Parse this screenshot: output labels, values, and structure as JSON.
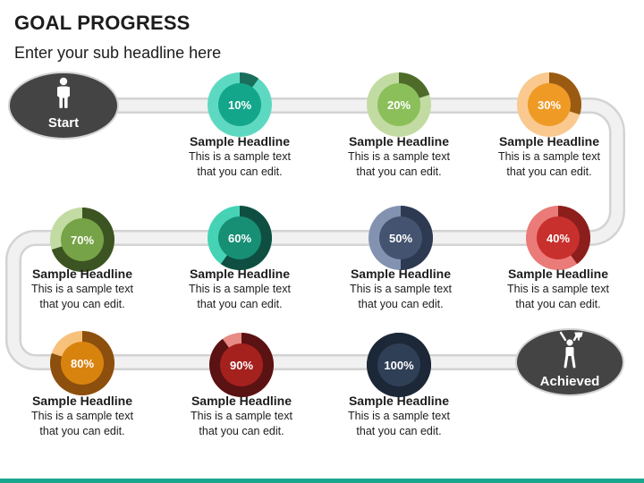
{
  "title": "GOAL PROGRESS",
  "subtitle": "Enter your sub headline here",
  "start_label": "Start",
  "end_label": "Achieved",
  "steps": [
    {
      "percent": "10%",
      "value": 10,
      "headline": "Sample Headline",
      "text_line1": "This is a sample text",
      "text_line2": "that you can edit.",
      "colors": {
        "outer": "#5ed9c1",
        "accent": "#1a6e5c",
        "inner": "#14a68a"
      }
    },
    {
      "percent": "20%",
      "value": 20,
      "headline": "Sample Headline",
      "text_line1": "This is a sample text",
      "text_line2": "that you can edit.",
      "colors": {
        "outer": "#c2dba3",
        "accent": "#4e6b2a",
        "inner": "#8bbf5a"
      }
    },
    {
      "percent": "30%",
      "value": 30,
      "headline": "Sample Headline",
      "text_line1": "This is a sample text",
      "text_line2": "that you can edit.",
      "colors": {
        "outer": "#f9c98f",
        "accent": "#9a5a12",
        "inner": "#ef9a25"
      }
    },
    {
      "percent": "40%",
      "value": 40,
      "headline": "Sample Headline",
      "text_line1": "This is a sample text",
      "text_line2": "that you can edit.",
      "colors": {
        "outer": "#ea7b78",
        "accent": "#8c1e1c",
        "inner": "#c8302d"
      }
    },
    {
      "percent": "50%",
      "value": 50,
      "headline": "Sample Headline",
      "text_line1": "This is a sample text",
      "text_line2": "that you can edit.",
      "colors": {
        "outer": "#8292b0",
        "accent": "#2d3a52",
        "inner": "#44536f"
      }
    },
    {
      "percent": "60%",
      "value": 60,
      "headline": "Sample Headline",
      "text_line1": "This is a sample text",
      "text_line2": "that you can edit.",
      "colors": {
        "outer": "#46d3b5",
        "accent": "#0f4f41",
        "inner": "#178f75"
      }
    },
    {
      "percent": "70%",
      "value": 70,
      "headline": "Sample Headline",
      "text_line1": "This is a sample text",
      "text_line2": "that you can edit.",
      "colors": {
        "outer": "#c2dba3",
        "accent": "#3c5422",
        "inner": "#76a347"
      }
    },
    {
      "percent": "80%",
      "value": 80,
      "headline": "Sample Headline",
      "text_line1": "This is a sample text",
      "text_line2": "that you can edit.",
      "colors": {
        "outer": "#f8c17b",
        "accent": "#8c4f0d",
        "inner": "#d9830f"
      }
    },
    {
      "percent": "90%",
      "value": 90,
      "headline": "Sample Headline",
      "text_line1": "This is a sample text",
      "text_line2": "that you can edit.",
      "colors": {
        "outer": "#e88a85",
        "accent": "#5a1212",
        "inner": "#a4211e"
      }
    },
    {
      "percent": "100%",
      "value": 100,
      "headline": "Sample Headline",
      "text_line1": "This is a sample text",
      "text_line2": "that you can edit.",
      "colors": {
        "outer": "#2e3f55",
        "accent": "#1c2738",
        "inner": "#2f3f56"
      }
    }
  ],
  "colors": {
    "track_fill": "#f1f1f1",
    "track_edge": "#d3d3d3",
    "node_dark": "#444444",
    "footer_accent": "#1aa78f"
  },
  "icons": {
    "start": "person-icon",
    "end": "trophy-person-icon"
  }
}
